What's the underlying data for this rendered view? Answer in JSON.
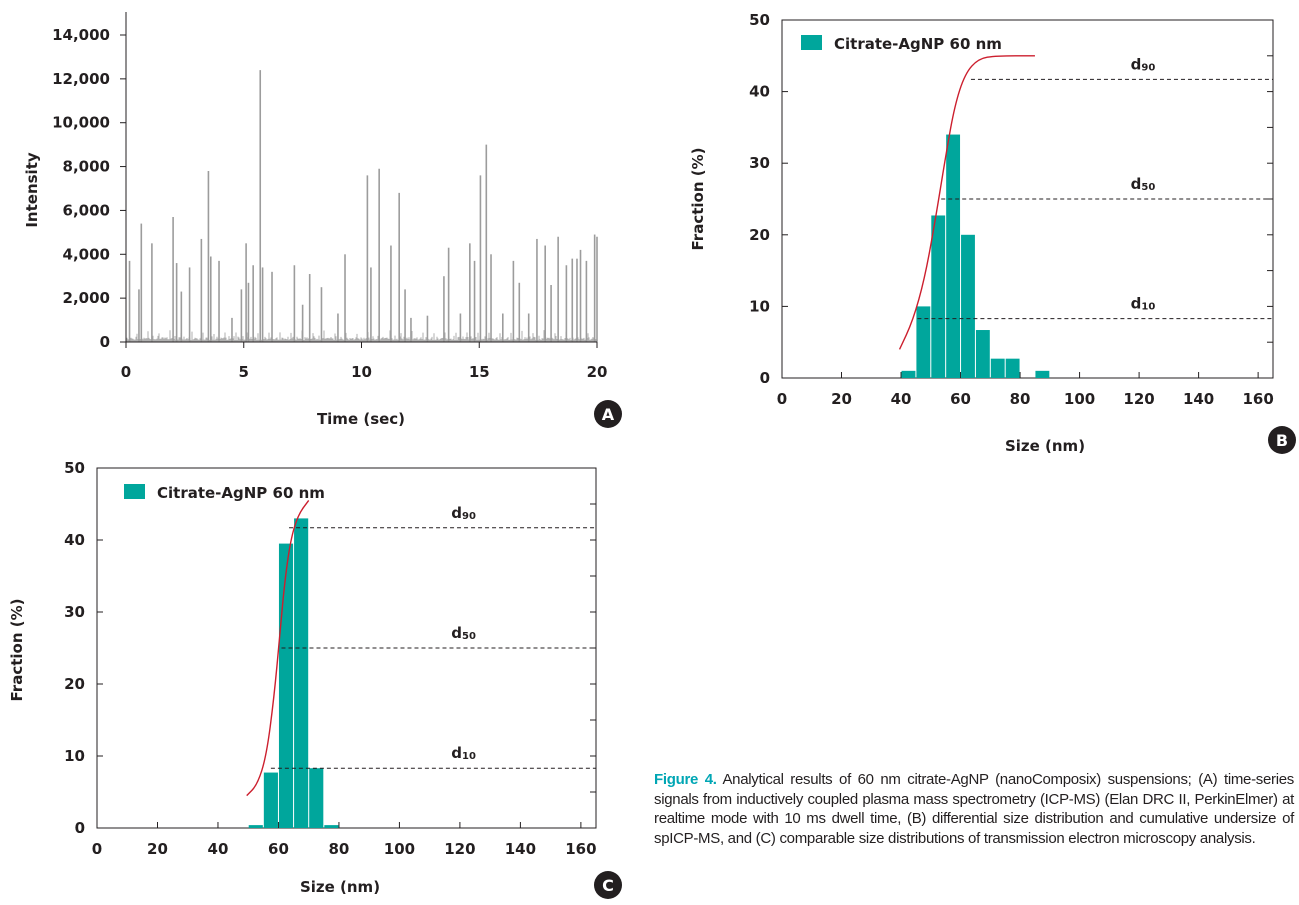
{
  "caption": {
    "head": "Figure 4.",
    "text": " Analytical results of 60 nm citrate-AgNP (nanoComposix) suspensions; (A) time-series signals from inductively coupled plasma mass spectrometry (ICP-MS) (Elan DRC II, PerkinElmer) at realtime mode with 10 ms dwell time, (B) differential size distribution and cumulative undersize of spICP-MS, and (C) comparable size distributions of transmission electron microscopy analysis."
  },
  "colors": {
    "bar": "#00a69c",
    "curve": "#cc1f2e",
    "spikes": "#9c9c9c",
    "axis": "#231f20",
    "badge": "#231f20",
    "caption_accent": "#00a6b4"
  },
  "chart_data": [
    {
      "panel": "A",
      "type": "line",
      "xlabel": "Time (sec)",
      "ylabel": "Intensity",
      "xlim": [
        0,
        20
      ],
      "ylim": [
        0,
        14000
      ],
      "x_ticks": [
        0,
        5,
        10,
        15,
        20
      ],
      "y_ticks": [
        0,
        2000,
        4000,
        6000,
        8000,
        10000,
        12000,
        14000
      ],
      "y_tick_labels": [
        "0",
        "2,000",
        "4,000",
        "6,000",
        "8,000",
        "10,000",
        "12,000",
        "14,000"
      ],
      "x_tick_labels": [
        "0",
        "5",
        "10",
        "15",
        "20"
      ],
      "spikes": [
        [
          0.15,
          3700
        ],
        [
          0.55,
          2400
        ],
        [
          0.65,
          5400
        ],
        [
          1.1,
          4500
        ],
        [
          2.0,
          5700
        ],
        [
          2.15,
          3600
        ],
        [
          2.35,
          2300
        ],
        [
          2.7,
          3400
        ],
        [
          3.2,
          4700
        ],
        [
          3.5,
          7800
        ],
        [
          3.6,
          3900
        ],
        [
          3.95,
          3700
        ],
        [
          4.5,
          1100
        ],
        [
          4.9,
          2400
        ],
        [
          5.1,
          4500
        ],
        [
          5.2,
          2700
        ],
        [
          5.4,
          3500
        ],
        [
          5.7,
          12400
        ],
        [
          5.8,
          3400
        ],
        [
          6.2,
          3200
        ],
        [
          7.15,
          3500
        ],
        [
          7.5,
          1700
        ],
        [
          7.8,
          3100
        ],
        [
          8.3,
          2500
        ],
        [
          9.0,
          1300
        ],
        [
          9.3,
          4000
        ],
        [
          10.25,
          7600
        ],
        [
          10.4,
          3400
        ],
        [
          10.75,
          7900
        ],
        [
          11.25,
          4400
        ],
        [
          11.6,
          6800
        ],
        [
          11.85,
          2400
        ],
        [
          12.1,
          1100
        ],
        [
          12.8,
          1200
        ],
        [
          13.5,
          3000
        ],
        [
          13.7,
          4300
        ],
        [
          14.2,
          1300
        ],
        [
          14.6,
          4500
        ],
        [
          14.8,
          3700
        ],
        [
          15.05,
          7600
        ],
        [
          15.3,
          9000
        ],
        [
          15.5,
          4000
        ],
        [
          16.0,
          1300
        ],
        [
          16.45,
          3700
        ],
        [
          16.7,
          2700
        ],
        [
          17.1,
          1300
        ],
        [
          17.45,
          4700
        ],
        [
          17.8,
          4400
        ],
        [
          18.05,
          2600
        ],
        [
          18.35,
          4800
        ],
        [
          18.7,
          3500
        ],
        [
          18.95,
          3800
        ],
        [
          19.15,
          3800
        ],
        [
          19.3,
          4200
        ],
        [
          19.55,
          3700
        ],
        [
          19.9,
          4900
        ],
        [
          20.0,
          4800
        ]
      ]
    },
    {
      "panel": "B",
      "type": "bar",
      "xlabel": "Size (nm)",
      "ylabel": "Fraction (%)",
      "xlim": [
        0,
        165
      ],
      "ylim": [
        0,
        50
      ],
      "x_ticks": [
        0,
        20,
        40,
        60,
        80,
        100,
        120,
        140,
        160
      ],
      "y_ticks": [
        0,
        10,
        20,
        30,
        40,
        50
      ],
      "x_tick_labels": [
        "0",
        "20",
        "40",
        "60",
        "80",
        "100",
        "120",
        "140",
        "160"
      ],
      "y_tick_labels": [
        "0",
        "10",
        "20",
        "30",
        "40",
        "50"
      ],
      "legend": "Citrate-AgNP 60 nm",
      "bin_width": 5,
      "bins": [
        {
          "x": 40,
          "value": 1
        },
        {
          "x": 45,
          "value": 10
        },
        {
          "x": 50,
          "value": 22.7
        },
        {
          "x": 55,
          "value": 34
        },
        {
          "x": 60,
          "value": 20
        },
        {
          "x": 65,
          "value": 6.7
        },
        {
          "x": 70,
          "value": 2.7
        },
        {
          "x": 75,
          "value": 2.7
        },
        {
          "x": 85,
          "value": 1
        }
      ],
      "cumulative_curve": [
        [
          39.5,
          4
        ],
        [
          44,
          8
        ],
        [
          48,
          14
        ],
        [
          51.5,
          22
        ],
        [
          55,
          31
        ],
        [
          58,
          38
        ],
        [
          61.5,
          42.5
        ],
        [
          66,
          44.6
        ],
        [
          72,
          45
        ],
        [
          85,
          45
        ]
      ],
      "d_lines": [
        {
          "label": "d",
          "sub": "90",
          "y": 41.7,
          "x_start": 63.5
        },
        {
          "label": "d",
          "sub": "50",
          "y": 25,
          "x_start": 53.5
        },
        {
          "label": "d",
          "sub": "10",
          "y": 8.3,
          "x_start": 45.5
        }
      ]
    },
    {
      "panel": "C",
      "type": "bar",
      "xlabel": "Size (nm)",
      "ylabel": "Fraction (%)",
      "xlim": [
        0,
        165
      ],
      "ylim": [
        0,
        50
      ],
      "x_ticks": [
        0,
        20,
        40,
        60,
        80,
        100,
        120,
        140,
        160
      ],
      "y_ticks": [
        0,
        10,
        20,
        30,
        40,
        50
      ],
      "x_tick_labels": [
        "0",
        "20",
        "40",
        "60",
        "80",
        "100",
        "120",
        "140",
        "160"
      ],
      "y_tick_labels": [
        "0",
        "10",
        "20",
        "30",
        "40",
        "50"
      ],
      "legend": "Citrate-AgNP 60 nm",
      "bin_width": 5,
      "bins": [
        {
          "x": 50,
          "value": 0.4
        },
        {
          "x": 55,
          "value": 7.7
        },
        {
          "x": 60,
          "value": 39.5
        },
        {
          "x": 65,
          "value": 43
        },
        {
          "x": 70,
          "value": 8.3
        },
        {
          "x": 75,
          "value": 0.4
        }
      ],
      "cumulative_curve": [
        [
          49.5,
          4.5
        ],
        [
          53,
          6
        ],
        [
          56,
          10
        ],
        [
          58.5,
          18
        ],
        [
          60.5,
          27
        ],
        [
          62,
          34
        ],
        [
          64,
          40
        ],
        [
          66.5,
          43.5
        ],
        [
          70,
          45.5
        ]
      ],
      "d_lines": [
        {
          "label": "d",
          "sub": "90",
          "y": 41.7,
          "x_start": 63.5
        },
        {
          "label": "d",
          "sub": "50",
          "y": 25,
          "x_start": 61
        },
        {
          "label": "d",
          "sub": "10",
          "y": 8.3,
          "x_start": 57.5
        }
      ]
    }
  ]
}
